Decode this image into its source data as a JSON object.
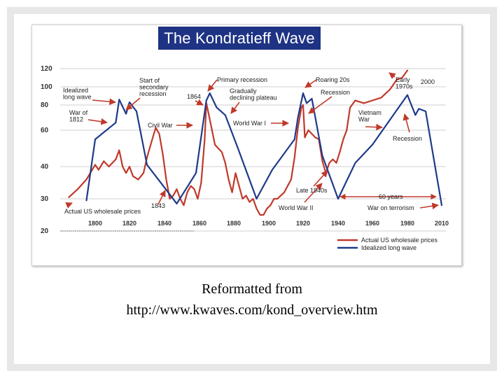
{
  "chart_data": {
    "type": "line",
    "title": "The Kondratieff Wave",
    "xlabel": "",
    "ylabel": "",
    "x_ticks": [
      1800,
      1820,
      1840,
      1860,
      1880,
      1900,
      1920,
      1940,
      1960,
      1980,
      2010
    ],
    "y_ticks": [
      20,
      30,
      40,
      60,
      80,
      100,
      120
    ],
    "ylim": [
      20,
      120
    ],
    "xlim": [
      1780,
      2013
    ],
    "grid": true,
    "legend_position": "bottom-right",
    "series": [
      {
        "name": "Actual US wholesale prices",
        "color": "#c0392b",
        "points": [
          [
            1785,
            30.5
          ],
          [
            1790,
            33
          ],
          [
            1795,
            36
          ],
          [
            1800,
            41
          ],
          [
            1802,
            39
          ],
          [
            1805,
            43
          ],
          [
            1808,
            40
          ],
          [
            1810,
            42
          ],
          [
            1812,
            44
          ],
          [
            1814,
            49
          ],
          [
            1816,
            40
          ],
          [
            1818,
            38
          ],
          [
            1820,
            40
          ],
          [
            1822,
            37
          ],
          [
            1825,
            36
          ],
          [
            1828,
            38
          ],
          [
            1830,
            45
          ],
          [
            1833,
            55
          ],
          [
            1835,
            62
          ],
          [
            1837,
            58
          ],
          [
            1839,
            47
          ],
          [
            1841,
            36
          ],
          [
            1843,
            30
          ],
          [
            1845,
            31
          ],
          [
            1847,
            33
          ],
          [
            1849,
            30
          ],
          [
            1851,
            28
          ],
          [
            1853,
            32
          ],
          [
            1855,
            34
          ],
          [
            1857,
            33
          ],
          [
            1859,
            30
          ],
          [
            1861,
            35
          ],
          [
            1863,
            55
          ],
          [
            1864,
            82
          ],
          [
            1865,
            75
          ],
          [
            1867,
            62
          ],
          [
            1869,
            52
          ],
          [
            1871,
            50
          ],
          [
            1873,
            48
          ],
          [
            1875,
            42
          ],
          [
            1877,
            36
          ],
          [
            1879,
            32
          ],
          [
            1881,
            38
          ],
          [
            1883,
            34
          ],
          [
            1885,
            30
          ],
          [
            1887,
            31
          ],
          [
            1889,
            29
          ],
          [
            1891,
            30
          ],
          [
            1893,
            27
          ],
          [
            1895,
            25
          ],
          [
            1897,
            25
          ],
          [
            1899,
            27
          ],
          [
            1901,
            28
          ],
          [
            1903,
            30
          ],
          [
            1905,
            30
          ],
          [
            1907,
            31
          ],
          [
            1909,
            32
          ],
          [
            1911,
            34
          ],
          [
            1913,
            36
          ],
          [
            1915,
            45
          ],
          [
            1917,
            62
          ],
          [
            1919,
            78
          ],
          [
            1920,
            80
          ],
          [
            1921,
            56
          ],
          [
            1923,
            60
          ],
          [
            1925,
            58
          ],
          [
            1927,
            56
          ],
          [
            1929,
            55
          ],
          [
            1931,
            43
          ],
          [
            1933,
            38
          ],
          [
            1935,
            42
          ],
          [
            1937,
            44
          ],
          [
            1939,
            42
          ],
          [
            1941,
            48
          ],
          [
            1943,
            55
          ],
          [
            1945,
            60
          ],
          [
            1947,
            78
          ],
          [
            1950,
            85
          ],
          [
            1955,
            82
          ],
          [
            1960,
            85
          ],
          [
            1965,
            88
          ],
          [
            1970,
            97
          ],
          [
            1974,
            108
          ],
          [
            1977,
            110
          ],
          [
            1980,
            118
          ]
        ]
      },
      {
        "name": "Idealized long wave",
        "color": "#1e3a8a",
        "points": [
          [
            1795,
            29.5
          ],
          [
            1800,
            55
          ],
          [
            1812,
            66
          ],
          [
            1814,
            86
          ],
          [
            1818,
            73
          ],
          [
            1820,
            83
          ],
          [
            1824,
            75
          ],
          [
            1830,
            41
          ],
          [
            1840,
            33.5
          ],
          [
            1847,
            28.5
          ],
          [
            1858,
            38
          ],
          [
            1864,
            85
          ],
          [
            1866,
            93
          ],
          [
            1870,
            78
          ],
          [
            1875,
            72
          ],
          [
            1882,
            51
          ],
          [
            1893,
            30
          ],
          [
            1902,
            39
          ],
          [
            1915,
            55
          ],
          [
            1917,
            70
          ],
          [
            1920,
            93
          ],
          [
            1922,
            82
          ],
          [
            1925,
            87
          ],
          [
            1931,
            46
          ],
          [
            1940,
            30
          ],
          [
            1950,
            42
          ],
          [
            1960,
            52
          ],
          [
            1980,
            91
          ],
          [
            1987,
            72
          ],
          [
            1990,
            77
          ],
          [
            1996,
            75
          ],
          [
            2010,
            28
          ]
        ]
      }
    ],
    "annotations": [
      "Idealized long wave",
      "War of 1812",
      "Start of secondary recession",
      "1864",
      "Primary recession",
      "Gradually declining plateau",
      "Roaring 20s",
      "Recession",
      "Early 1970s",
      "2000",
      "Civil War",
      "World War I",
      "Vietnam War",
      "Recession",
      "Late 1940s",
      "60 years",
      "1843",
      "Actual US wholesale prices",
      "World War II",
      "War on terrorism"
    ]
  },
  "caption": {
    "line1": "Reformatted from",
    "line2": "http://www.kwaves.com/kond_overview.htm"
  }
}
